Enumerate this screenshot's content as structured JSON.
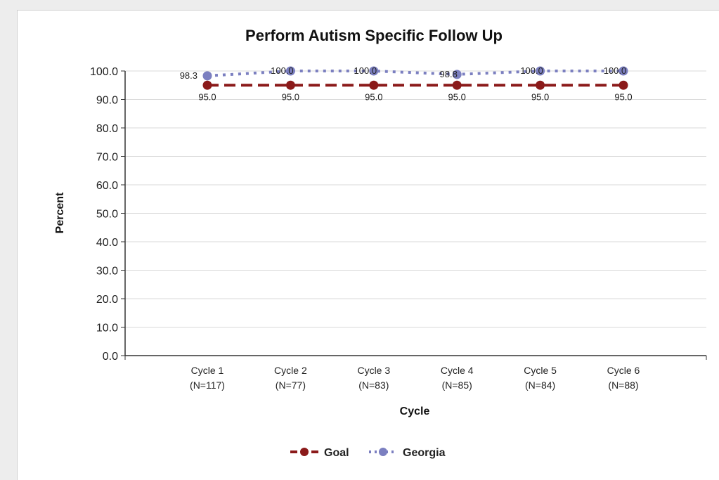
{
  "chart_data": {
    "type": "line",
    "title": "Perform Autism Specific Follow Up",
    "xlabel": "Cycle",
    "ylabel": "Percent",
    "ylim": [
      0,
      100
    ],
    "yticks": [
      "0.0",
      "10.0",
      "20.0",
      "30.0",
      "40.0",
      "50.0",
      "60.0",
      "70.0",
      "80.0",
      "90.0",
      "100.0"
    ],
    "categories": [
      {
        "line1": "Cycle 1",
        "line2": "(N=117)"
      },
      {
        "line1": "Cycle 2",
        "line2": "(N=77)"
      },
      {
        "line1": "Cycle 3",
        "line2": "(N=83)"
      },
      {
        "line1": "Cycle 4",
        "line2": "(N=85)"
      },
      {
        "line1": "Cycle 5",
        "line2": "(N=84)"
      },
      {
        "line1": "Cycle 6",
        "line2": "(N=88)"
      }
    ],
    "series": [
      {
        "name": "Goal",
        "color": "#8b1a1a",
        "style": "dashed",
        "values": [
          95.0,
          95.0,
          95.0,
          95.0,
          95.0,
          95.0
        ],
        "labels": [
          "95.0",
          "95.0",
          "95.0",
          "95.0",
          "95.0",
          "95.0"
        ]
      },
      {
        "name": "Georgia",
        "color": "#7b7fc0",
        "style": "dotted",
        "values": [
          98.3,
          100.0,
          100.0,
          98.8,
          100.0,
          100.0
        ],
        "labels": [
          "98.3",
          "100.0",
          "100.0",
          "98.8",
          "100.0",
          "100.0"
        ]
      }
    ],
    "grid": true,
    "legend": "bottom"
  }
}
